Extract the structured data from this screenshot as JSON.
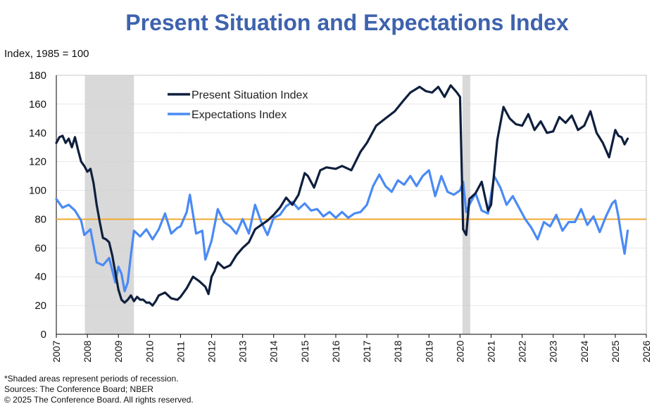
{
  "header": {
    "title": "Present Situation and Expectations Index",
    "unit_label": "Index, 1985 = 100"
  },
  "footnotes": {
    "recession_note": "*Shaded areas represent periods of recession.",
    "sources": "Sources:  The Conference Board;  NBER",
    "copyright": "© 2025 The Conference Board. All rights reserved."
  },
  "colors": {
    "present": "#0f1f3d",
    "expectations": "#4a8af4",
    "threshold": "#f0a830",
    "recession": "#d9d9d9",
    "grid": "#cfcfcf"
  },
  "chart_data": {
    "type": "line",
    "title": "Present Situation and Expectations Index",
    "ylabel": "Index, 1985 = 100",
    "xlabel": "",
    "xlim": [
      2007,
      2026
    ],
    "ylim": [
      0,
      180
    ],
    "y_ticks": [
      0,
      20,
      40,
      60,
      80,
      100,
      120,
      140,
      160,
      180
    ],
    "x_ticks": [
      "2007",
      "2008",
      "2009",
      "2010",
      "2011",
      "2012",
      "2013",
      "2014",
      "2015",
      "2016",
      "2017",
      "2018",
      "2019",
      "2020",
      "2021",
      "2022",
      "2023",
      "2024",
      "2025",
      "2026"
    ],
    "grid": true,
    "legend_position": "top-left",
    "reference_line": 80,
    "recessions": [
      [
        2007.92,
        2009.5
      ],
      [
        2020.08,
        2020.33
      ]
    ],
    "series": [
      {
        "name": "Present Situation Index",
        "color": "#0f1f3d",
        "x": [
          2007.0,
          2007.1,
          2007.2,
          2007.3,
          2007.4,
          2007.5,
          2007.6,
          2007.7,
          2007.8,
          2007.9,
          2008.0,
          2008.1,
          2008.2,
          2008.3,
          2008.4,
          2008.5,
          2008.6,
          2008.7,
          2008.8,
          2008.9,
          2009.0,
          2009.1,
          2009.2,
          2009.3,
          2009.4,
          2009.5,
          2009.6,
          2009.7,
          2009.8,
          2009.9,
          2010.0,
          2010.1,
          2010.2,
          2010.3,
          2010.5,
          2010.7,
          2010.9,
          2011.0,
          2011.2,
          2011.4,
          2011.6,
          2011.8,
          2011.9,
          2012.0,
          2012.1,
          2012.2,
          2012.4,
          2012.6,
          2012.8,
          2013.0,
          2013.2,
          2013.4,
          2013.6,
          2013.8,
          2014.0,
          2014.2,
          2014.4,
          2014.6,
          2014.8,
          2015.0,
          2015.1,
          2015.3,
          2015.5,
          2015.7,
          2016.0,
          2016.2,
          2016.5,
          2016.8,
          2017.0,
          2017.3,
          2017.6,
          2017.9,
          2018.2,
          2018.4,
          2018.7,
          2018.9,
          2019.1,
          2019.3,
          2019.5,
          2019.7,
          2019.9,
          2020.0,
          2020.1,
          2020.2,
          2020.3,
          2020.5,
          2020.7,
          2020.9,
          2021.0,
          2021.2,
          2021.4,
          2021.6,
          2021.8,
          2022.0,
          2022.2,
          2022.4,
          2022.6,
          2022.8,
          2023.0,
          2023.2,
          2023.4,
          2023.6,
          2023.8,
          2024.0,
          2024.2,
          2024.4,
          2024.6,
          2024.8,
          2025.0,
          2025.1,
          2025.2,
          2025.3,
          2025.4
        ],
        "values": [
          133,
          137,
          138,
          133,
          136,
          130,
          137,
          128,
          120,
          117,
          113,
          115,
          105,
          90,
          78,
          67,
          66,
          64,
          55,
          43,
          31,
          24,
          22,
          24,
          27,
          23,
          26,
          24,
          24,
          22,
          22,
          20,
          23,
          27,
          29,
          25,
          24,
          26,
          32,
          40,
          37,
          33,
          28,
          40,
          44,
          50,
          46,
          48,
          55,
          60,
          64,
          73,
          76,
          79,
          83,
          88,
          95,
          90,
          97,
          112,
          110,
          102,
          114,
          116,
          115,
          117,
          114,
          127,
          133,
          145,
          150,
          155,
          163,
          168,
          172,
          169,
          168,
          172,
          165,
          173,
          168,
          165,
          73,
          69,
          94,
          98,
          106,
          86,
          90,
          135,
          158,
          150,
          146,
          145,
          153,
          142,
          148,
          140,
          141,
          151,
          147,
          152,
          142,
          145,
          155,
          140,
          133,
          123,
          142,
          138,
          137,
          132,
          136
        ]
      },
      {
        "name": "Expectations Index",
        "color": "#4a8af4",
        "x": [
          2007.0,
          2007.2,
          2007.4,
          2007.6,
          2007.8,
          2007.9,
          2008.1,
          2008.3,
          2008.5,
          2008.7,
          2008.9,
          2009.0,
          2009.1,
          2009.2,
          2009.3,
          2009.4,
          2009.5,
          2009.7,
          2009.9,
          2010.1,
          2010.3,
          2010.5,
          2010.7,
          2010.9,
          2011.0,
          2011.2,
          2011.3,
          2011.5,
          2011.7,
          2011.8,
          2012.0,
          2012.2,
          2012.4,
          2012.6,
          2012.8,
          2013.0,
          2013.2,
          2013.4,
          2013.6,
          2013.8,
          2014.0,
          2014.2,
          2014.4,
          2014.6,
          2014.8,
          2015.0,
          2015.2,
          2015.4,
          2015.6,
          2015.8,
          2016.0,
          2016.2,
          2016.4,
          2016.6,
          2016.8,
          2017.0,
          2017.2,
          2017.4,
          2017.6,
          2017.8,
          2018.0,
          2018.2,
          2018.4,
          2018.6,
          2018.8,
          2019.0,
          2019.2,
          2019.4,
          2019.6,
          2019.8,
          2020.0,
          2020.1,
          2020.2,
          2020.3,
          2020.5,
          2020.7,
          2020.9,
          2021.1,
          2021.3,
          2021.5,
          2021.7,
          2021.9,
          2022.1,
          2022.3,
          2022.5,
          2022.7,
          2022.9,
          2023.1,
          2023.3,
          2023.5,
          2023.7,
          2023.9,
          2024.1,
          2024.3,
          2024.5,
          2024.7,
          2024.9,
          2025.0,
          2025.1,
          2025.2,
          2025.3,
          2025.4
        ],
        "values": [
          94,
          88,
          90,
          86,
          79,
          69,
          73,
          50,
          48,
          53,
          36,
          47,
          42,
          30,
          36,
          55,
          72,
          68,
          73,
          66,
          73,
          84,
          70,
          74,
          75,
          85,
          97,
          70,
          72,
          52,
          65,
          87,
          78,
          75,
          70,
          80,
          70,
          90,
          78,
          69,
          81,
          83,
          89,
          92,
          87,
          91,
          86,
          87,
          82,
          85,
          81,
          85,
          81,
          84,
          85,
          90,
          103,
          111,
          103,
          99,
          107,
          104,
          110,
          103,
          110,
          114,
          96,
          110,
          99,
          97,
          100,
          106,
          85,
          90,
          98,
          86,
          84,
          110,
          102,
          90,
          96,
          88,
          80,
          74,
          66,
          78,
          75,
          83,
          72,
          78,
          78,
          87,
          76,
          82,
          71,
          82,
          91,
          93,
          82,
          68,
          56,
          72
        ]
      }
    ]
  }
}
